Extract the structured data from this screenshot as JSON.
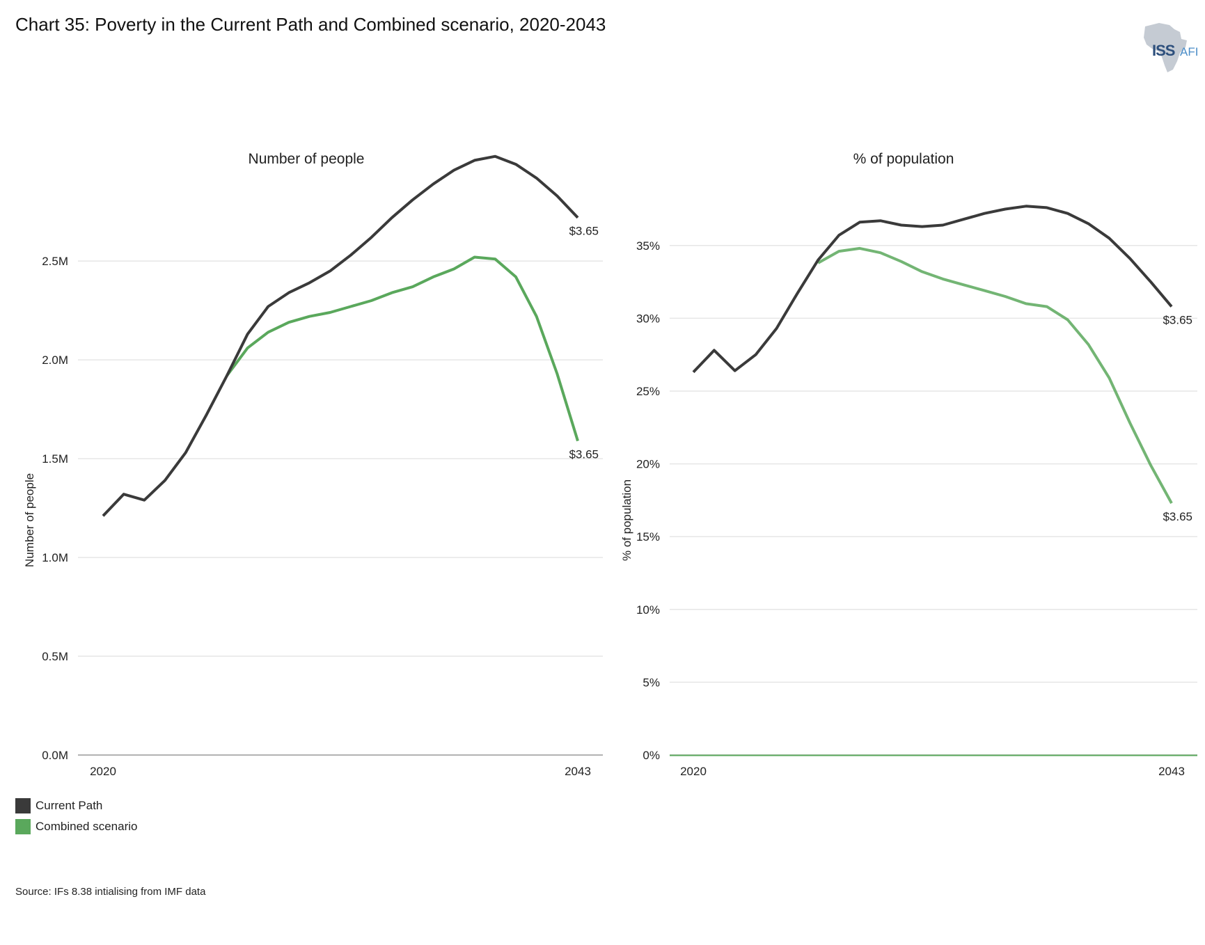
{
  "header": {
    "title": "Chart 35: Poverty in the Current Path and Combined scenario, 2020-2043"
  },
  "logo": {
    "iss": "ISS",
    "afi": "AFI",
    "icon": "africa-map-icon"
  },
  "colors": {
    "current_path": "#3a3a3a",
    "combined": "#5aa85c",
    "grid": "#e6e6e6",
    "axis": "#999999"
  },
  "legend": [
    {
      "label": "Current Path",
      "color": "#3a3a3a"
    },
    {
      "label": "Combined scenario",
      "color": "#5aa85c"
    }
  ],
  "source": "Source: IFs 8.38 intialising from IMF data",
  "chart_data": [
    {
      "type": "line",
      "title": "Number of people",
      "ylabel": "Number of people",
      "xlabel": "",
      "ylim": [
        0,
        2.8
      ],
      "yticks": [
        0,
        0.5,
        1.0,
        1.5,
        2.0,
        2.5
      ],
      "ytick_labels": [
        "0.0M",
        "0.5M",
        "1.0M",
        "1.5M",
        "2.0M",
        "2.5M"
      ],
      "xtick_labels": [
        "2020",
        "2043"
      ],
      "x": [
        2020,
        2021,
        2022,
        2023,
        2024,
        2025,
        2026,
        2027,
        2028,
        2029,
        2030,
        2031,
        2032,
        2033,
        2034,
        2035,
        2036,
        2037,
        2038,
        2039,
        2040,
        2041,
        2042,
        2043
      ],
      "grid": true,
      "series": [
        {
          "name": "Current Path",
          "end_label": "$3.65",
          "values": [
            1.21,
            1.32,
            1.29,
            1.39,
            1.53,
            1.72,
            1.92,
            2.13,
            2.27,
            2.34,
            2.39,
            2.45,
            2.53,
            2.62,
            2.72,
            2.81,
            2.89,
            2.96,
            3.01,
            3.03,
            2.99,
            2.92,
            2.83,
            2.72
          ]
        },
        {
          "name": "Combined scenario",
          "end_label": "$3.65",
          "values": [
            null,
            null,
            null,
            null,
            null,
            null,
            1.92,
            2.06,
            2.14,
            2.19,
            2.22,
            2.24,
            2.27,
            2.3,
            2.34,
            2.37,
            2.42,
            2.46,
            2.52,
            2.51,
            2.42,
            2.22,
            1.93,
            1.59
          ]
        }
      ]
    },
    {
      "type": "line",
      "title": "% of population",
      "ylabel": "% of population",
      "xlabel": "",
      "ylim": [
        0,
        38
      ],
      "yticks": [
        0,
        5,
        10,
        15,
        20,
        25,
        30,
        35
      ],
      "ytick_labels": [
        "0%",
        "5%",
        "10%",
        "15%",
        "20%",
        "25%",
        "30%",
        "35%"
      ],
      "xtick_labels": [
        "2020",
        "2043"
      ],
      "x": [
        2020,
        2021,
        2022,
        2023,
        2024,
        2025,
        2026,
        2027,
        2028,
        2029,
        2030,
        2031,
        2032,
        2033,
        2034,
        2035,
        2036,
        2037,
        2038,
        2039,
        2040,
        2041,
        2042,
        2043
      ],
      "grid": true,
      "series": [
        {
          "name": "Current Path",
          "end_label": "$3.65",
          "values": [
            26.3,
            27.8,
            26.4,
            27.5,
            29.3,
            31.7,
            34.0,
            35.7,
            36.6,
            36.7,
            36.4,
            36.3,
            36.4,
            36.8,
            37.2,
            37.5,
            37.7,
            37.6,
            37.2,
            36.5,
            35.5,
            34.1,
            32.5,
            30.8
          ]
        },
        {
          "name": "Combined scenario",
          "end_label": "$3.65",
          "values": [
            null,
            null,
            null,
            null,
            null,
            null,
            33.8,
            34.6,
            34.8,
            34.5,
            33.9,
            33.2,
            32.7,
            32.3,
            31.9,
            31.5,
            31.0,
            30.8,
            29.9,
            28.2,
            25.9,
            22.8,
            19.9,
            17.3
          ]
        }
      ]
    }
  ]
}
